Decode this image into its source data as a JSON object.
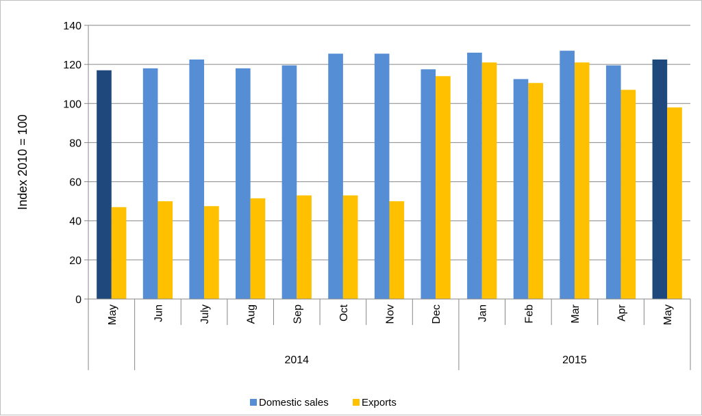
{
  "chart_data": {
    "type": "bar",
    "title": "",
    "xlabel": "",
    "ylabel": "Index 2010 = 100",
    "ylim": [
      0,
      140
    ],
    "yticks": [
      0,
      20,
      40,
      60,
      80,
      100,
      120,
      140
    ],
    "grid": true,
    "legend": "bottom",
    "categories": [
      "May",
      "Jun",
      "July",
      "Aug",
      "Sep",
      "Oct",
      "Nov",
      "Dec",
      "Jan",
      "Feb",
      "Mar",
      "Apr",
      "May"
    ],
    "groups": [
      {
        "label": "",
        "start": 0,
        "end": 0
      },
      {
        "label": "2014",
        "start": 1,
        "end": 7
      },
      {
        "label": "2015",
        "start": 8,
        "end": 12
      }
    ],
    "highlight_indices": [
      0,
      12
    ],
    "series": [
      {
        "name": "Domestic sales",
        "color": "#558ED5",
        "highlight_color": "#1F497D",
        "values": [
          117,
          118,
          122.5,
          118,
          119.5,
          125.5,
          125.5,
          117.5,
          126,
          112.5,
          127,
          119.5,
          122.5
        ]
      },
      {
        "name": "Exports",
        "color": "#FFC000",
        "values": [
          47,
          50,
          47.5,
          51.5,
          53,
          53,
          50,
          114,
          121,
          110.5,
          121,
          107,
          98
        ]
      }
    ]
  }
}
